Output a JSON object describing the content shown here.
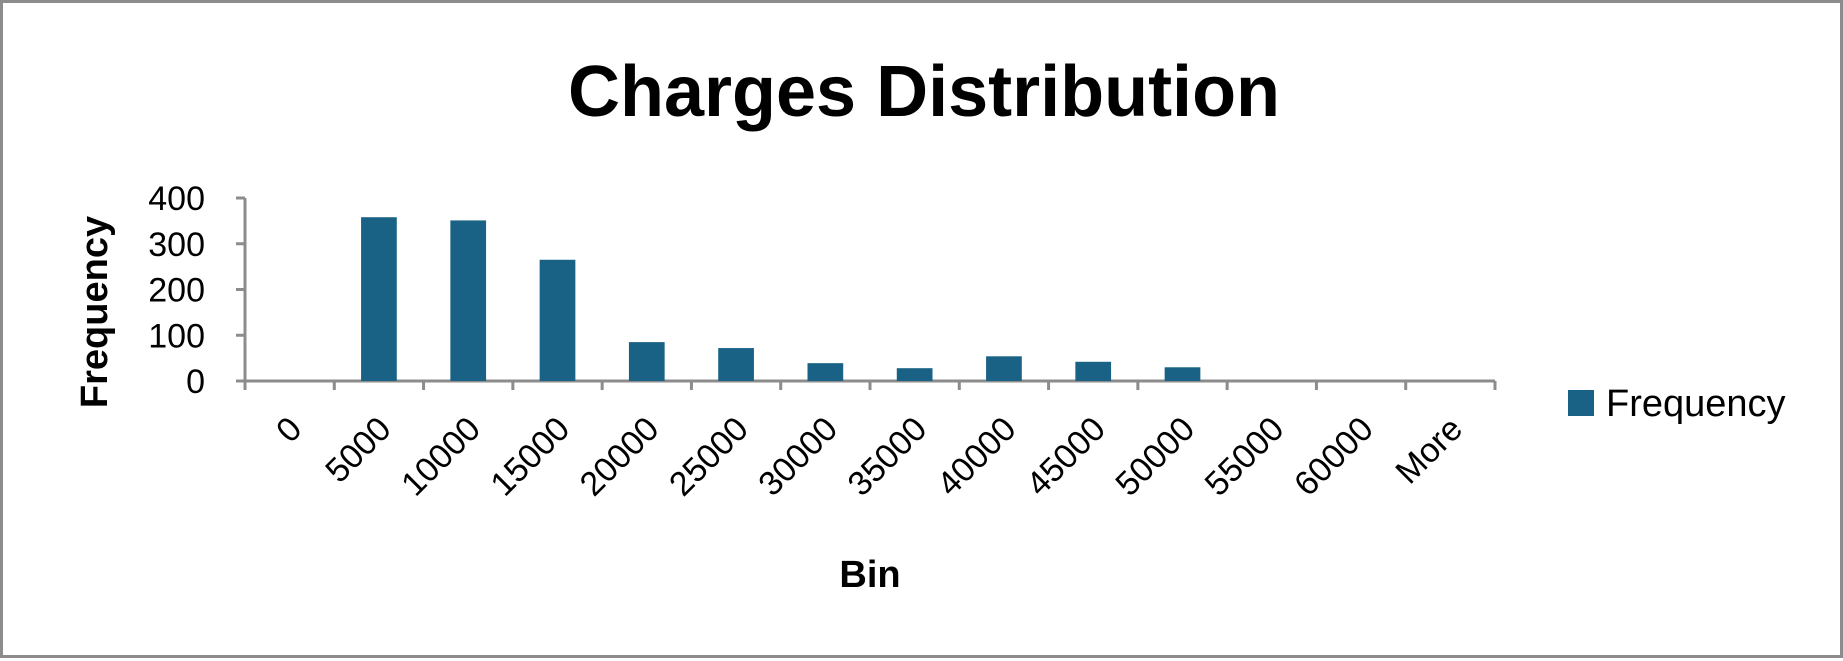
{
  "chart_data": {
    "type": "bar",
    "title": "Charges Distribution",
    "xlabel": "Bin",
    "ylabel": "Frequency",
    "categories": [
      "0",
      "5000",
      "10000",
      "15000",
      "20000",
      "25000",
      "30000",
      "35000",
      "40000",
      "45000",
      "50000",
      "55000",
      "60000",
      "More"
    ],
    "series": [
      {
        "name": "Frequency",
        "values": [
          0,
          358,
          351,
          265,
          85,
          72,
          39,
          28,
          54,
          42,
          30,
          0,
          0,
          0
        ]
      }
    ],
    "ylim": [
      0,
      400
    ],
    "yticks": [
      "0",
      "100",
      "200",
      "300",
      "400"
    ],
    "grid": false,
    "legend_position": "right",
    "bar_color": "#1a6285",
    "axis_color": "#8c8c8c"
  }
}
